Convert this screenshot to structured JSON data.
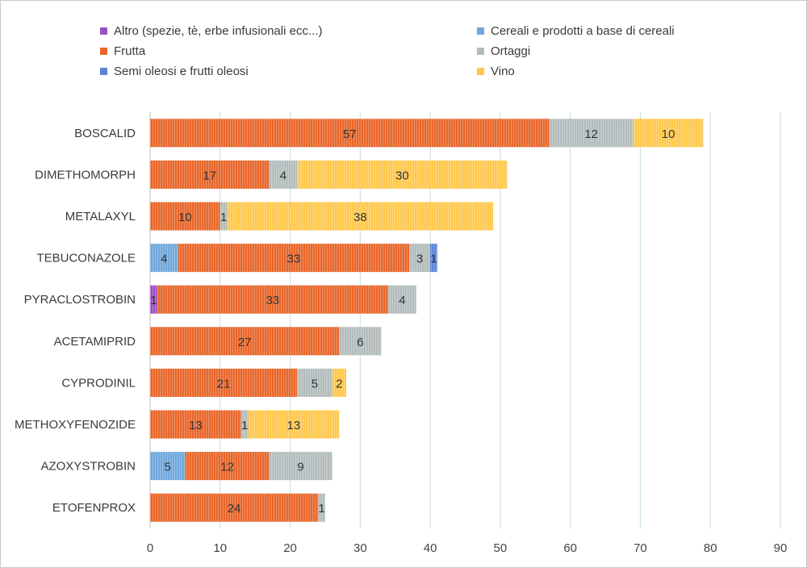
{
  "chart_data": {
    "type": "bar",
    "orientation": "horizontal",
    "stacked": true,
    "title": "",
    "xlabel": "",
    "ylabel": "",
    "xlim": [
      0,
      90
    ],
    "x_ticks": [
      0,
      10,
      20,
      30,
      40,
      50,
      60,
      70,
      80,
      90
    ],
    "grid": "vertical",
    "legend_position": "top",
    "categories": [
      "BOSCALID",
      "DIMETHOMORPH",
      "METALAXYL",
      "TEBUCONAZOLE",
      "PYRACLOSTROBIN",
      "ACETAMIPRID",
      "CYPRODINIL",
      "METHOXYFENOZIDE",
      "AZOXYSTROBIN",
      "ETOFENPROX"
    ],
    "series": [
      {
        "name": "Altro (spezie, tè, erbe infusionali ecc...)",
        "color": "#9a4fc4",
        "values": [
          0,
          0,
          0,
          0,
          1,
          0,
          0,
          0,
          0,
          0
        ]
      },
      {
        "name": "Cereali e prodotti a base di cereali",
        "color": "#6fa8dc",
        "values": [
          0,
          0,
          0,
          4,
          0,
          0,
          0,
          0,
          5,
          0
        ]
      },
      {
        "name": "Frutta",
        "color": "#e8662a",
        "values": [
          57,
          17,
          10,
          33,
          33,
          27,
          21,
          13,
          12,
          24
        ]
      },
      {
        "name": "Ortaggi",
        "color": "#b3bcbc",
        "values": [
          12,
          4,
          1,
          3,
          4,
          6,
          5,
          1,
          9,
          1
        ]
      },
      {
        "name": "Semi oleosi e frutti oleosi",
        "color": "#5b83d4",
        "values": [
          0,
          0,
          0,
          1,
          0,
          0,
          0,
          0,
          0,
          0
        ]
      },
      {
        "name": "Vino",
        "color": "#ffc84d",
        "values": [
          10,
          30,
          38,
          0,
          0,
          0,
          2,
          13,
          0,
          0
        ]
      }
    ]
  }
}
